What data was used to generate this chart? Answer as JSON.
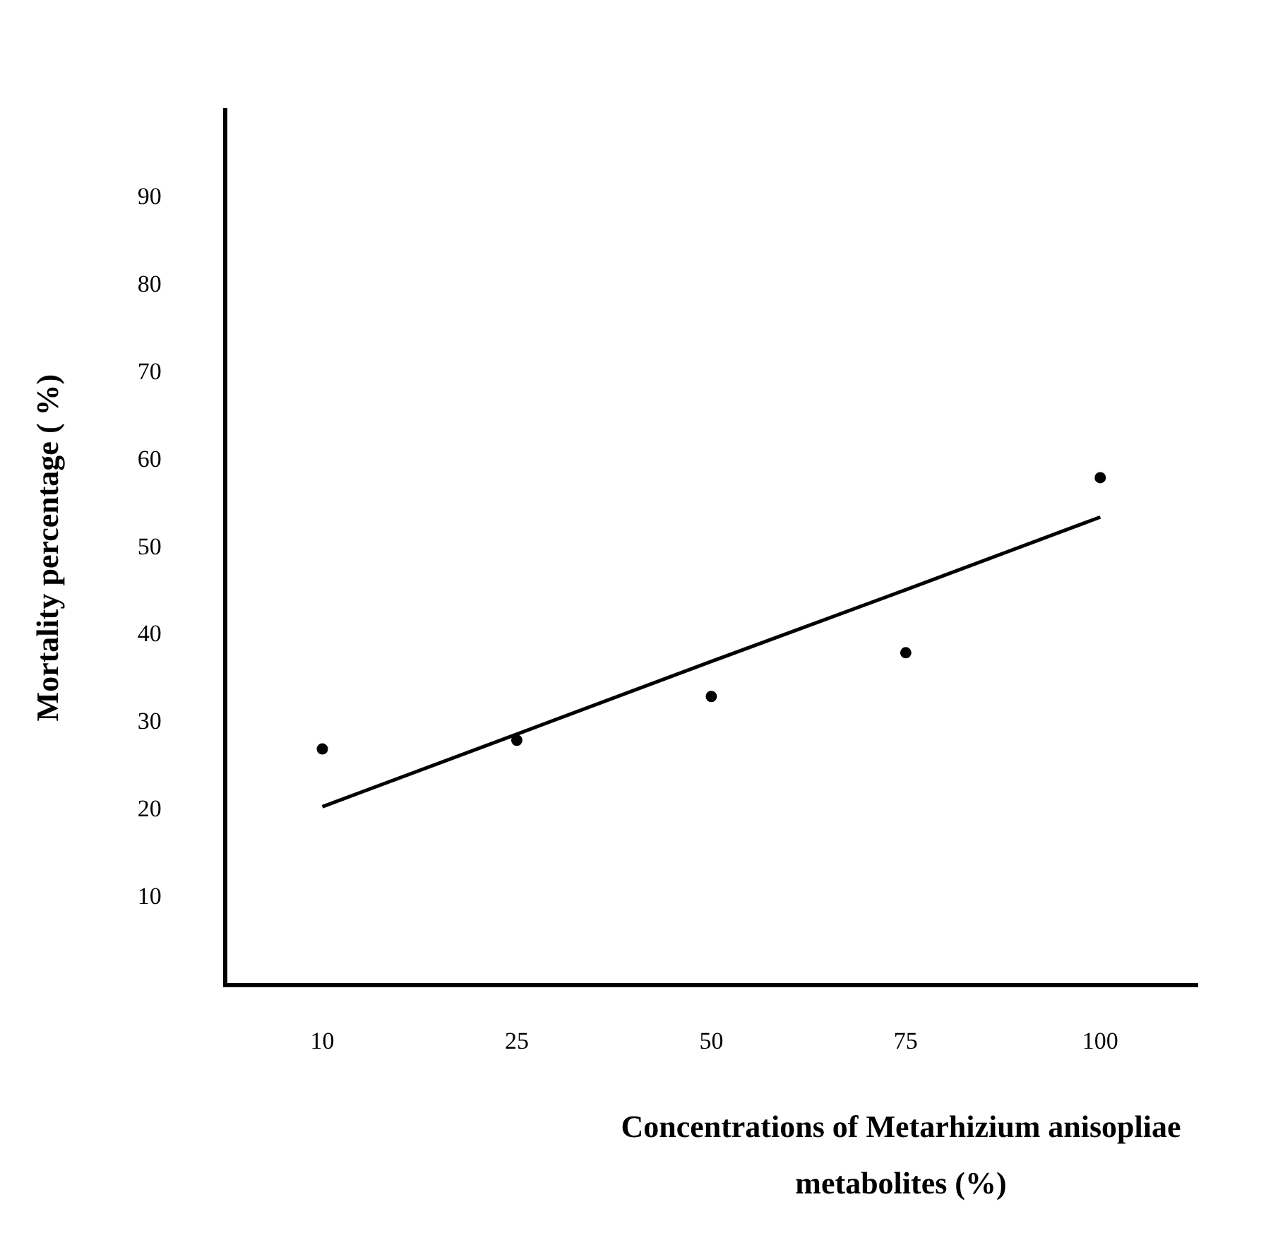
{
  "chart_data": {
    "type": "scatter",
    "xlabel": "Concentrations of Metarhizium anisopliae metabolites (%)",
    "ylabel": "Mortality percentage ( %)",
    "categories": [
      "10",
      "25",
      "50",
      "75",
      "100"
    ],
    "series": [
      {
        "color": "#000000",
        "values": [
          27,
          28,
          33,
          38,
          58
        ],
        "marker": "circle"
      },
      {
        "type": "line",
        "color": "#000000",
        "values": [
          20.4,
          28.7,
          37,
          45.2,
          53.5
        ],
        "marker": "none",
        "line_style": "solid"
      }
    ],
    "ylim": [
      0,
      100
    ],
    "yticks": [
      10,
      20,
      30,
      40,
      50,
      60,
      70,
      80,
      90
    ],
    "grid": false,
    "legend": false
  }
}
